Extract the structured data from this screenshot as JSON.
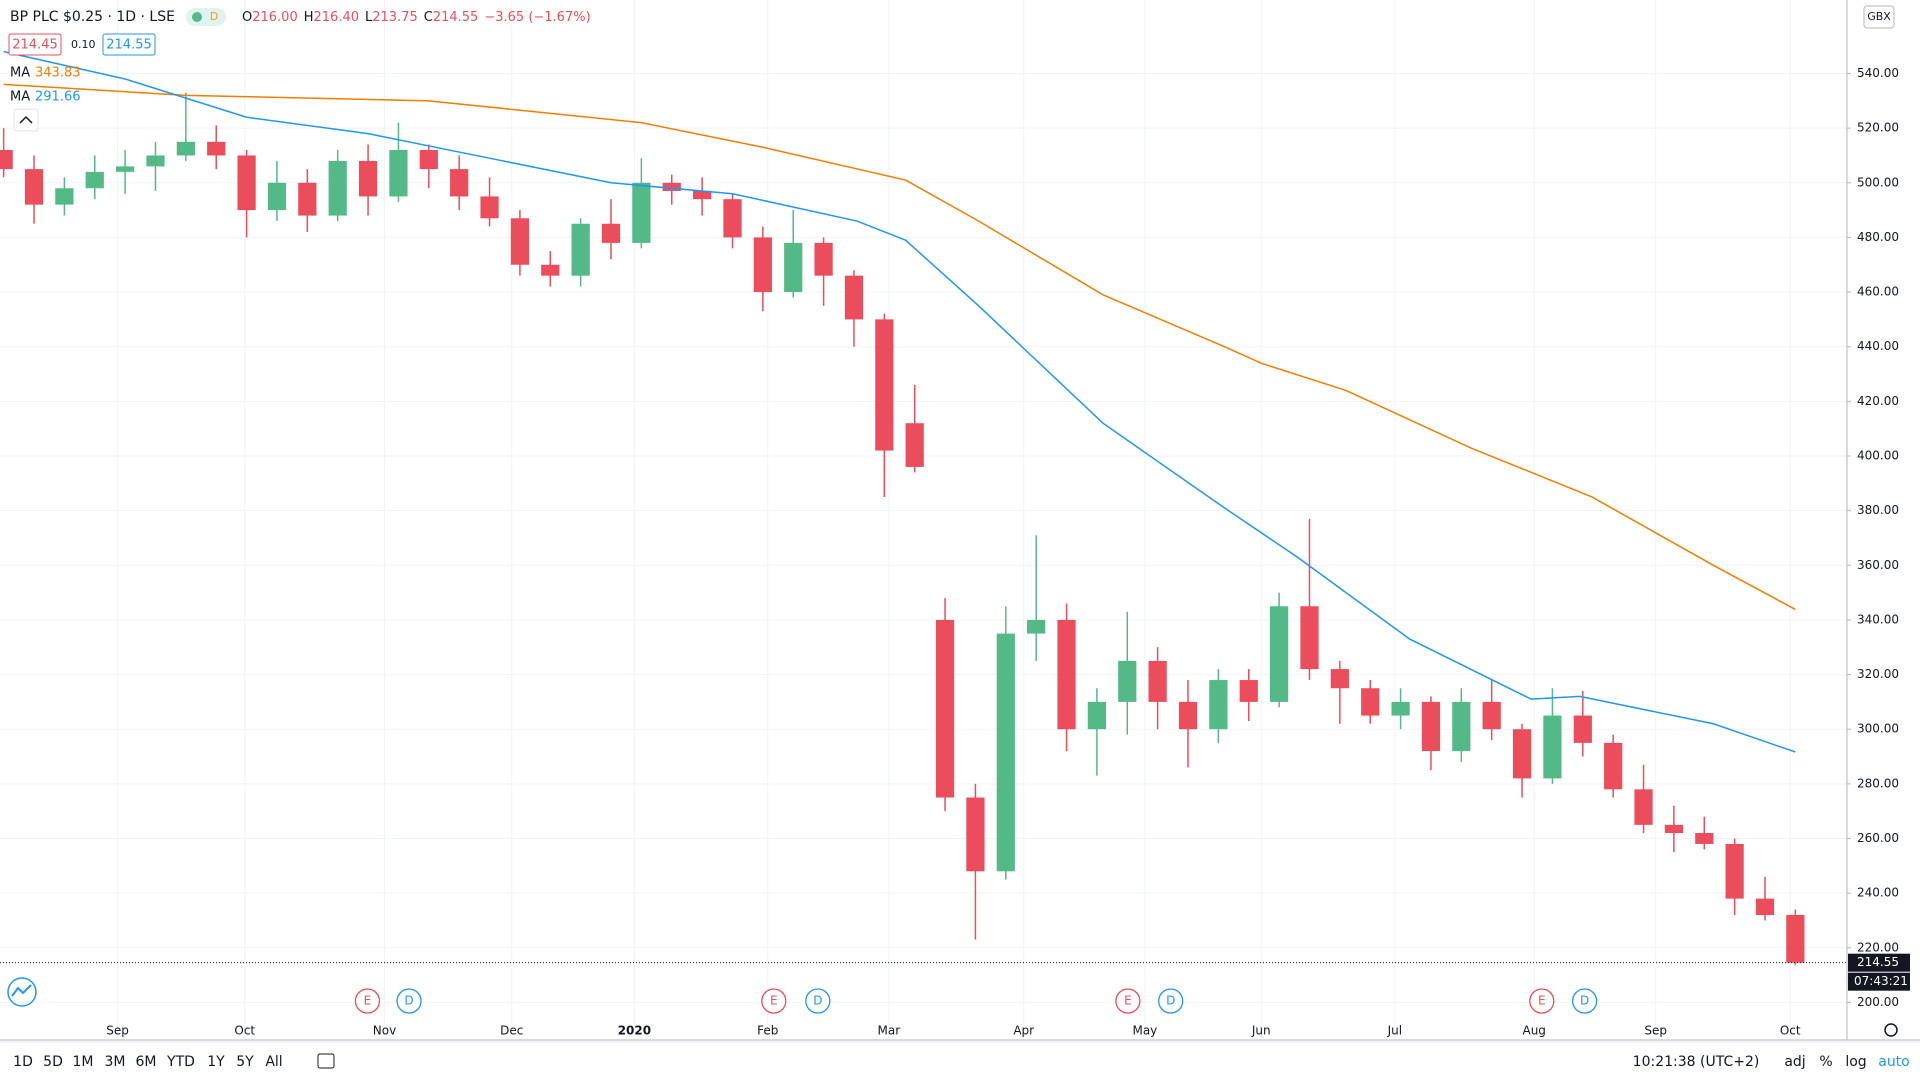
{
  "header": {
    "title": "BP PLC $0.25 · 1D · LSE",
    "badge": "D",
    "ohlc": [
      {
        "label": "O",
        "value": "216.00"
      },
      {
        "label": "H",
        "value": "216.40"
      },
      {
        "label": "L",
        "value": "213.75"
      },
      {
        "label": "C",
        "value": "214.55"
      }
    ],
    "change": "−3.65 (−1.67%)",
    "bid": "214.45",
    "spread": "0.10",
    "ask": "214.55",
    "currency": "GBX",
    "countdown": "07:43:21"
  },
  "toolbar": {
    "ranges": [
      "1D",
      "5D",
      "1M",
      "3M",
      "6M",
      "YTD",
      "1Y",
      "5Y",
      "All"
    ],
    "clock": "10:21:38 (UTC+2)",
    "options": [
      "adj",
      "%",
      "log",
      "auto"
    ]
  },
  "chart_data": {
    "type": "candlestick",
    "up_color": "#53b987",
    "down_color": "#eb4d5c",
    "grid": true,
    "log_scale": false,
    "x": [
      0,
      1,
      2,
      3,
      4,
      5,
      6,
      7,
      8,
      9,
      10,
      11,
      12,
      13,
      14,
      15,
      16,
      17,
      18,
      19,
      20,
      21,
      22,
      23,
      24,
      25,
      26,
      27,
      28,
      29,
      30,
      31,
      32,
      33,
      34,
      35,
      36,
      37,
      38,
      39,
      40,
      41,
      42,
      43,
      44,
      45,
      46,
      47,
      48,
      49,
      50,
      51,
      52,
      53,
      54,
      55,
      56,
      57,
      58,
      59
    ],
    "open": [
      512,
      505,
      492,
      498,
      504,
      506,
      510,
      515,
      510,
      490,
      500,
      488,
      508,
      495,
      512,
      505,
      495,
      487,
      470,
      466,
      485,
      478,
      500,
      497,
      494,
      480,
      460,
      478,
      466,
      450,
      412,
      340,
      275,
      248,
      335,
      340,
      300,
      310,
      325,
      310,
      300,
      318,
      310,
      345,
      322,
      315,
      305,
      310,
      292,
      310,
      300,
      282,
      305,
      295,
      278,
      265,
      262,
      258,
      238,
      232
    ],
    "high": [
      520,
      510,
      502,
      510,
      512,
      515,
      533,
      521,
      512,
      508,
      505,
      512,
      514,
      522,
      514,
      510,
      502,
      490,
      475,
      487,
      494,
      509,
      503,
      502,
      496,
      484,
      490,
      480,
      468,
      452,
      426,
      348,
      280,
      345,
      371,
      346,
      315,
      343,
      330,
      318,
      322,
      322,
      350,
      377,
      325,
      318,
      315,
      312,
      315,
      318,
      302,
      315,
      314,
      298,
      287,
      272,
      268,
      260,
      246,
      234
    ],
    "low": [
      502,
      485,
      488,
      494,
      496,
      497,
      508,
      505,
      480,
      486,
      482,
      486,
      488,
      493,
      498,
      490,
      484,
      466,
      462,
      462,
      472,
      476,
      492,
      488,
      476,
      453,
      458,
      455,
      440,
      385,
      394,
      270,
      223,
      245,
      325,
      292,
      283,
      298,
      300,
      286,
      295,
      303,
      308,
      318,
      302,
      302,
      300,
      285,
      288,
      296,
      275,
      280,
      290,
      275,
      262,
      255,
      256,
      232,
      230,
      213.75
    ],
    "close": [
      505,
      492,
      498,
      504,
      506,
      510,
      515,
      510,
      490,
      500,
      488,
      508,
      495,
      512,
      505,
      495,
      487,
      470,
      466,
      485,
      478,
      500,
      497,
      494,
      480,
      460,
      478,
      466,
      450,
      402,
      396,
      275,
      248,
      335,
      340,
      300,
      310,
      325,
      310,
      300,
      318,
      310,
      345,
      322,
      315,
      305,
      310,
      292,
      310,
      300,
      282,
      305,
      295,
      278,
      265,
      262,
      258,
      238,
      232,
      214.55
    ],
    "series": [
      {
        "name": "MA",
        "color": "#f57c00",
        "x": [
          0,
          6,
          14,
          21,
          25,
          29.7,
          32.1,
          36.2,
          40.2,
          41.4,
          44.2,
          48.3,
          52.3,
          56.3,
          59
        ],
        "values": [
          536,
          532,
          530,
          522,
          513,
          501,
          486,
          459,
          440,
          434,
          424,
          403,
          385,
          360,
          343.83
        ]
      },
      {
        "name": "MA",
        "color": "#2196f3",
        "x": [
          0,
          4,
          8,
          12,
          16,
          20,
          24,
          28.1,
          29.7,
          32.1,
          36.2,
          40.2,
          42.6,
          46.3,
          50.3,
          51.9,
          56.3,
          59
        ],
        "values": [
          548,
          538,
          524,
          518,
          509,
          500,
          496,
          486,
          479,
          455,
          412,
          381,
          363,
          333,
          311,
          312,
          302,
          291.66
        ]
      }
    ],
    "events": [
      {
        "x": 11.98,
        "label": "E"
      },
      {
        "x": 13.35,
        "label": "D"
      },
      {
        "x": 25.36,
        "label": "E"
      },
      {
        "x": 26.81,
        "label": "D"
      },
      {
        "x": 37.02,
        "label": "E"
      },
      {
        "x": 38.43,
        "label": "D"
      },
      {
        "x": 50.65,
        "label": "E"
      },
      {
        "x": 52.06,
        "label": "D"
      }
    ],
    "last_price": 214.55,
    "xlim": [
      -0.12,
      60.7
    ],
    "xticks": [
      {
        "value": 3.75,
        "label": "Sep"
      },
      {
        "value": 7.94,
        "label": "Oct"
      },
      {
        "value": 12.54,
        "label": "Nov"
      },
      {
        "value": 16.73,
        "label": "Dec"
      },
      {
        "value": 20.77,
        "label": "2020"
      },
      {
        "value": 25.16,
        "label": "Feb"
      },
      {
        "value": 29.15,
        "label": "Mar"
      },
      {
        "value": 33.59,
        "label": "Apr"
      },
      {
        "value": 37.58,
        "label": "May"
      },
      {
        "value": 41.41,
        "label": "Jun"
      },
      {
        "value": 45.81,
        "label": "Jul"
      },
      {
        "value": 50.4,
        "label": "Aug"
      },
      {
        "value": 54.4,
        "label": "Sep"
      },
      {
        "value": 58.83,
        "label": "Oct"
      }
    ],
    "ylim": [
      195.4,
      566.9
    ],
    "yticks": [
      {
        "value": 200,
        "label": "200.00"
      },
      {
        "value": 220,
        "label": "220.00"
      },
      {
        "value": 240,
        "label": "240.00"
      },
      {
        "value": 260,
        "label": "260.00"
      },
      {
        "value": 280,
        "label": "280.00"
      },
      {
        "value": 300,
        "label": "300.00"
      },
      {
        "value": 320,
        "label": "320.00"
      },
      {
        "value": 340,
        "label": "340.00"
      },
      {
        "value": 360,
        "label": "360.00"
      },
      {
        "value": 380,
        "label": "380.00"
      },
      {
        "value": 400,
        "label": "400.00"
      },
      {
        "value": 420,
        "label": "420.00"
      },
      {
        "value": 440,
        "label": "440.00"
      },
      {
        "value": 460,
        "label": "460.00"
      },
      {
        "value": 480,
        "label": "480.00"
      },
      {
        "value": 500,
        "label": "500.00"
      },
      {
        "value": 520,
        "label": "520.00"
      },
      {
        "value": 540,
        "label": "540.00"
      }
    ]
  }
}
